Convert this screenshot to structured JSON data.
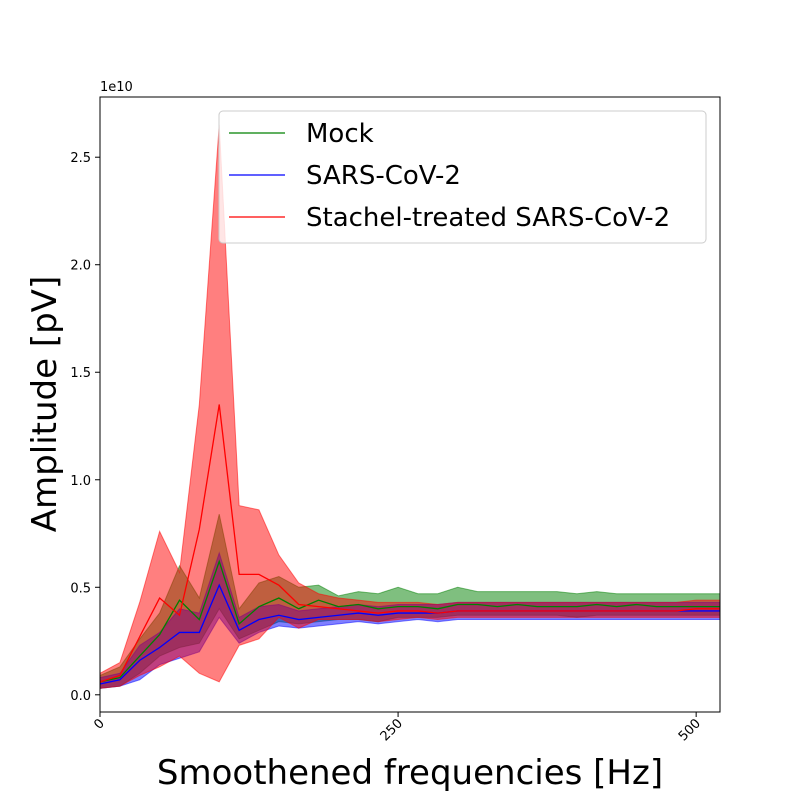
{
  "chart_data": {
    "type": "line",
    "xlabel": "Smoothened frequencies [Hz]",
    "ylabel": "Amplitude [pV]",
    "y_offset_label": "1e10",
    "xlim": [
      0,
      520
    ],
    "ylim": [
      -0.08,
      2.78
    ],
    "y_scale_note": "values in units of 1e10",
    "x_ticks": [
      {
        "value": 0,
        "label": "0"
      },
      {
        "value": 250,
        "label": "250"
      },
      {
        "value": 500,
        "label": "500"
      }
    ],
    "y_ticks": [
      {
        "value": 0.0,
        "label": "0.0"
      },
      {
        "value": 0.5,
        "label": "0.5"
      },
      {
        "value": 1.0,
        "label": "1.0"
      },
      {
        "value": 1.5,
        "label": "1.5"
      },
      {
        "value": 2.0,
        "label": "2.0"
      },
      {
        "value": 2.5,
        "label": "2.5"
      }
    ],
    "x": [
      0,
      16.7,
      33.3,
      50,
      66.7,
      83.3,
      100,
      116.7,
      133.3,
      150,
      166.7,
      183.3,
      200,
      216.7,
      233.3,
      250,
      266.7,
      283.3,
      300,
      316.7,
      333.3,
      350,
      366.7,
      383.3,
      400,
      416.7,
      433.3,
      450,
      466.7,
      483.3,
      500,
      520
    ],
    "legend_position": "upper-right",
    "series": [
      {
        "name": "Mock",
        "color": "#008000",
        "values": [
          0.06,
          0.08,
          0.18,
          0.28,
          0.44,
          0.35,
          0.62,
          0.33,
          0.41,
          0.45,
          0.4,
          0.44,
          0.41,
          0.42,
          0.4,
          0.41,
          0.41,
          0.4,
          0.42,
          0.42,
          0.41,
          0.42,
          0.41,
          0.41,
          0.41,
          0.42,
          0.41,
          0.42,
          0.41,
          0.41,
          0.41,
          0.41
        ],
        "lower": [
          0.03,
          0.04,
          0.1,
          0.18,
          0.22,
          0.24,
          0.4,
          0.26,
          0.3,
          0.34,
          0.33,
          0.34,
          0.35,
          0.35,
          0.34,
          0.36,
          0.36,
          0.36,
          0.37,
          0.37,
          0.37,
          0.37,
          0.37,
          0.37,
          0.36,
          0.37,
          0.37,
          0.37,
          0.37,
          0.37,
          0.37,
          0.37
        ],
        "upper": [
          0.09,
          0.13,
          0.26,
          0.38,
          0.6,
          0.45,
          0.84,
          0.4,
          0.52,
          0.55,
          0.5,
          0.51,
          0.46,
          0.48,
          0.47,
          0.5,
          0.47,
          0.47,
          0.5,
          0.48,
          0.48,
          0.48,
          0.48,
          0.48,
          0.47,
          0.48,
          0.47,
          0.47,
          0.47,
          0.47,
          0.47,
          0.47
        ]
      },
      {
        "name": "SARS-CoV-2",
        "color": "#0000ff",
        "values": [
          0.05,
          0.07,
          0.16,
          0.22,
          0.29,
          0.29,
          0.51,
          0.3,
          0.35,
          0.37,
          0.35,
          0.36,
          0.37,
          0.38,
          0.37,
          0.38,
          0.38,
          0.38,
          0.39,
          0.39,
          0.39,
          0.39,
          0.39,
          0.39,
          0.39,
          0.39,
          0.39,
          0.39,
          0.39,
          0.39,
          0.39,
          0.39
        ],
        "lower": [
          0.03,
          0.04,
          0.07,
          0.14,
          0.17,
          0.2,
          0.36,
          0.24,
          0.29,
          0.32,
          0.31,
          0.32,
          0.33,
          0.34,
          0.33,
          0.34,
          0.35,
          0.34,
          0.35,
          0.35,
          0.35,
          0.35,
          0.35,
          0.35,
          0.35,
          0.35,
          0.35,
          0.35,
          0.35,
          0.35,
          0.35,
          0.35
        ],
        "upper": [
          0.08,
          0.1,
          0.23,
          0.29,
          0.4,
          0.38,
          0.66,
          0.36,
          0.41,
          0.42,
          0.39,
          0.4,
          0.41,
          0.42,
          0.41,
          0.42,
          0.42,
          0.42,
          0.43,
          0.43,
          0.43,
          0.43,
          0.43,
          0.43,
          0.43,
          0.43,
          0.43,
          0.43,
          0.43,
          0.43,
          0.43,
          0.43
        ]
      },
      {
        "name": "Stachel-treated SARS-CoV-2",
        "color": "#ff0000",
        "values": [
          0.06,
          0.09,
          0.27,
          0.45,
          0.37,
          0.77,
          1.35,
          0.56,
          0.56,
          0.51,
          0.42,
          0.41,
          0.4,
          0.39,
          0.38,
          0.39,
          0.39,
          0.38,
          0.39,
          0.39,
          0.39,
          0.39,
          0.39,
          0.39,
          0.39,
          0.39,
          0.39,
          0.39,
          0.39,
          0.39,
          0.4,
          0.4
        ],
        "lower": [
          0.03,
          0.04,
          0.09,
          0.13,
          0.18,
          0.1,
          0.06,
          0.23,
          0.26,
          0.36,
          0.31,
          0.35,
          0.35,
          0.35,
          0.34,
          0.35,
          0.36,
          0.35,
          0.36,
          0.36,
          0.36,
          0.36,
          0.36,
          0.36,
          0.36,
          0.36,
          0.36,
          0.36,
          0.36,
          0.36,
          0.36,
          0.36
        ],
        "upper": [
          0.1,
          0.15,
          0.43,
          0.76,
          0.57,
          1.35,
          2.65,
          0.88,
          0.86,
          0.65,
          0.52,
          0.47,
          0.45,
          0.44,
          0.43,
          0.43,
          0.43,
          0.42,
          0.43,
          0.43,
          0.43,
          0.43,
          0.43,
          0.43,
          0.43,
          0.43,
          0.43,
          0.43,
          0.43,
          0.43,
          0.44,
          0.44
        ]
      }
    ]
  }
}
